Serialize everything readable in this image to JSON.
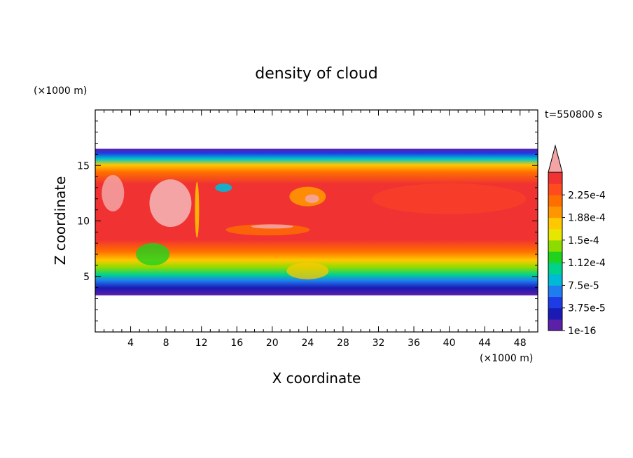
{
  "chart_data": {
    "type": "heatmap",
    "title": "density of cloud",
    "xlabel": "X coordinate",
    "ylabel": "Z coordinate",
    "x_unit": "(×1000 m)",
    "z_unit": "(×1000 m)",
    "time_label": "t=550800 s",
    "xlim": [
      0,
      50
    ],
    "ylim": [
      0,
      20
    ],
    "x_ticks": [
      4,
      8,
      12,
      16,
      20,
      24,
      28,
      32,
      36,
      40,
      44,
      48
    ],
    "y_ticks": [
      5,
      10,
      15
    ],
    "cloud_layer": {
      "base": 3.3,
      "top": 16.5
    },
    "colorbar": {
      "labels": [
        "1e-16",
        "3.75e-5",
        "7.5e-5",
        "1.12e-4",
        "1.5e-4",
        "1.88e-4",
        "2.25e-4"
      ],
      "colors": [
        "#5b1fa8",
        "#1a1ab4",
        "#1e3ce6",
        "#1f7df0",
        "#00b9d6",
        "#00d28c",
        "#1ed21e",
        "#8cdc00",
        "#e6e600",
        "#ffc800",
        "#ff9600",
        "#ff6e00",
        "#ff4b1e",
        "#f03232"
      ],
      "extend_color": "#f4a4a4"
    }
  }
}
